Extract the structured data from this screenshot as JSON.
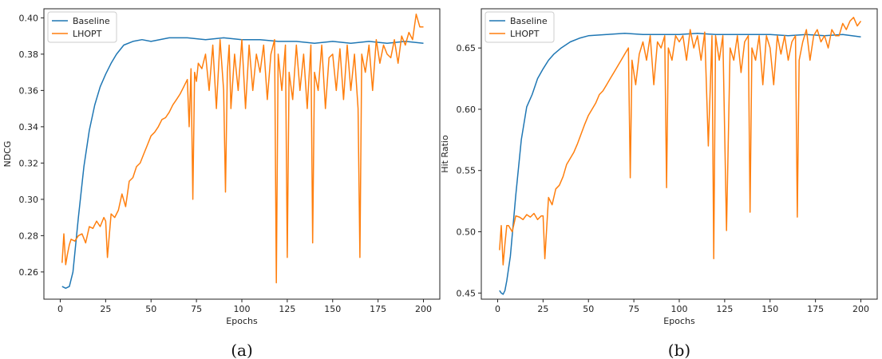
{
  "colors": {
    "baseline": "#1f77b4",
    "lhopt": "#ff7f0e",
    "axis": "#222222",
    "legend_border": "#cccccc"
  },
  "chart_data": [
    {
      "type": "line",
      "caption": "(a)",
      "title": "",
      "xlabel": "Epochs",
      "ylabel": "NDCG",
      "xlim": [
        -9,
        209
      ],
      "ylim": [
        0.245,
        0.405
      ],
      "xticks": [
        0,
        25,
        50,
        75,
        100,
        125,
        150,
        175,
        200
      ],
      "yticks": [
        0.26,
        0.28,
        0.3,
        0.32,
        0.34,
        0.36,
        0.38,
        0.4
      ],
      "ytick_labels": [
        "0.26",
        "0.28",
        "0.30",
        "0.32",
        "0.34",
        "0.36",
        "0.38",
        "0.40"
      ],
      "grid": false,
      "legend": "top-left",
      "series": [
        {
          "name": "Baseline",
          "x": [
            1,
            3,
            5,
            7,
            10,
            13,
            16,
            19,
            22,
            25,
            28,
            31,
            35,
            40,
            45,
            50,
            60,
            70,
            80,
            90,
            100,
            110,
            120,
            130,
            140,
            150,
            160,
            170,
            180,
            190,
            200
          ],
          "values": [
            0.252,
            0.251,
            0.252,
            0.26,
            0.29,
            0.318,
            0.338,
            0.352,
            0.362,
            0.369,
            0.375,
            0.38,
            0.385,
            0.387,
            0.388,
            0.387,
            0.389,
            0.389,
            0.388,
            0.389,
            0.388,
            0.388,
            0.387,
            0.387,
            0.386,
            0.387,
            0.386,
            0.387,
            0.386,
            0.387,
            0.386
          ]
        },
        {
          "name": "LHOPT",
          "x": [
            1,
            2,
            3,
            4,
            5,
            6,
            8,
            10,
            12,
            14,
            16,
            18,
            20,
            22,
            24,
            25,
            26,
            28,
            30,
            32,
            34,
            36,
            38,
            40,
            42,
            44,
            46,
            48,
            50,
            52,
            54,
            56,
            58,
            60,
            62,
            64,
            66,
            68,
            70,
            71,
            72,
            73,
            74,
            75,
            76,
            78,
            80,
            82,
            84,
            86,
            88,
            90,
            91,
            92,
            93,
            94,
            96,
            98,
            100,
            102,
            104,
            106,
            108,
            110,
            112,
            114,
            116,
            118,
            119,
            120,
            122,
            124,
            125,
            126,
            128,
            130,
            132,
            134,
            136,
            138,
            139,
            140,
            142,
            144,
            146,
            148,
            150,
            152,
            154,
            156,
            158,
            160,
            162,
            164,
            165,
            166,
            168,
            170,
            172,
            174,
            176,
            178,
            180,
            182,
            184,
            186,
            188,
            190,
            192,
            194,
            196,
            198,
            200
          ],
          "values": [
            0.265,
            0.281,
            0.264,
            0.27,
            0.275,
            0.278,
            0.277,
            0.28,
            0.281,
            0.276,
            0.285,
            0.284,
            0.288,
            0.285,
            0.29,
            0.288,
            0.268,
            0.292,
            0.29,
            0.294,
            0.303,
            0.296,
            0.31,
            0.312,
            0.318,
            0.32,
            0.325,
            0.33,
            0.335,
            0.337,
            0.34,
            0.344,
            0.345,
            0.348,
            0.352,
            0.355,
            0.358,
            0.362,
            0.366,
            0.34,
            0.372,
            0.3,
            0.37,
            0.365,
            0.375,
            0.372,
            0.38,
            0.36,
            0.385,
            0.35,
            0.388,
            0.36,
            0.304,
            0.37,
            0.385,
            0.35,
            0.38,
            0.36,
            0.388,
            0.35,
            0.385,
            0.36,
            0.38,
            0.37,
            0.385,
            0.355,
            0.38,
            0.388,
            0.254,
            0.38,
            0.36,
            0.385,
            0.268,
            0.37,
            0.355,
            0.385,
            0.36,
            0.38,
            0.35,
            0.385,
            0.276,
            0.37,
            0.36,
            0.385,
            0.35,
            0.378,
            0.38,
            0.36,
            0.383,
            0.355,
            0.385,
            0.36,
            0.38,
            0.35,
            0.268,
            0.38,
            0.37,
            0.385,
            0.36,
            0.388,
            0.375,
            0.385,
            0.38,
            0.378,
            0.388,
            0.375,
            0.39,
            0.385,
            0.392,
            0.388,
            0.402,
            0.395,
            0.395
          ]
        }
      ]
    },
    {
      "type": "line",
      "caption": "(b)",
      "title": "",
      "xlabel": "Epochs",
      "ylabel": "Hit Ratio",
      "xlim": [
        -9,
        209
      ],
      "ylim": [
        0.445,
        0.682
      ],
      "xticks": [
        0,
        25,
        50,
        75,
        100,
        125,
        150,
        175,
        200
      ],
      "yticks": [
        0.45,
        0.5,
        0.55,
        0.6,
        0.65
      ],
      "ytick_labels": [
        "0.45",
        "0.50",
        "0.55",
        "0.60",
        "0.65"
      ],
      "grid": false,
      "legend": "top-left",
      "series": [
        {
          "name": "Baseline",
          "x": [
            1,
            2,
            3,
            4,
            5,
            7,
            10,
            13,
            16,
            19,
            22,
            25,
            28,
            31,
            35,
            40,
            45,
            50,
            60,
            70,
            80,
            90,
            100,
            110,
            120,
            130,
            140,
            150,
            160,
            170,
            180,
            190,
            200
          ],
          "values": [
            0.452,
            0.45,
            0.449,
            0.452,
            0.46,
            0.48,
            0.53,
            0.575,
            0.602,
            0.612,
            0.625,
            0.633,
            0.64,
            0.645,
            0.65,
            0.655,
            0.658,
            0.66,
            0.661,
            0.662,
            0.661,
            0.661,
            0.661,
            0.662,
            0.661,
            0.661,
            0.661,
            0.661,
            0.66,
            0.661,
            0.66,
            0.661,
            0.659
          ]
        },
        {
          "name": "LHOPT",
          "x": [
            1,
            2,
            3,
            4,
            5,
            6,
            8,
            10,
            12,
            14,
            16,
            18,
            20,
            22,
            24,
            25,
            26,
            28,
            30,
            32,
            34,
            36,
            38,
            40,
            42,
            44,
            46,
            48,
            50,
            52,
            54,
            56,
            58,
            60,
            62,
            64,
            66,
            68,
            70,
            72,
            73,
            74,
            76,
            78,
            80,
            82,
            84,
            86,
            88,
            90,
            92,
            93,
            94,
            96,
            98,
            100,
            102,
            104,
            106,
            108,
            110,
            112,
            114,
            116,
            118,
            119,
            120,
            122,
            124,
            126,
            128,
            130,
            132,
            134,
            136,
            138,
            139,
            140,
            142,
            144,
            146,
            148,
            150,
            152,
            154,
            156,
            158,
            160,
            162,
            164,
            165,
            166,
            168,
            170,
            172,
            174,
            176,
            178,
            180,
            182,
            184,
            186,
            188,
            190,
            192,
            194,
            196,
            198,
            200
          ],
          "values": [
            0.485,
            0.505,
            0.473,
            0.49,
            0.505,
            0.505,
            0.5,
            0.513,
            0.512,
            0.51,
            0.514,
            0.512,
            0.515,
            0.51,
            0.513,
            0.513,
            0.478,
            0.528,
            0.522,
            0.535,
            0.538,
            0.545,
            0.555,
            0.56,
            0.565,
            0.572,
            0.58,
            0.588,
            0.595,
            0.6,
            0.605,
            0.612,
            0.615,
            0.62,
            0.625,
            0.63,
            0.635,
            0.64,
            0.645,
            0.65,
            0.544,
            0.64,
            0.62,
            0.645,
            0.655,
            0.64,
            0.66,
            0.62,
            0.655,
            0.65,
            0.66,
            0.536,
            0.65,
            0.64,
            0.66,
            0.655,
            0.66,
            0.64,
            0.665,
            0.65,
            0.66,
            0.64,
            0.663,
            0.57,
            0.66,
            0.478,
            0.66,
            0.64,
            0.66,
            0.501,
            0.65,
            0.64,
            0.66,
            0.63,
            0.655,
            0.66,
            0.516,
            0.65,
            0.64,
            0.66,
            0.62,
            0.66,
            0.65,
            0.62,
            0.66,
            0.645,
            0.66,
            0.64,
            0.655,
            0.66,
            0.512,
            0.64,
            0.655,
            0.665,
            0.64,
            0.66,
            0.665,
            0.655,
            0.66,
            0.65,
            0.665,
            0.66,
            0.66,
            0.67,
            0.665,
            0.672,
            0.675,
            0.668,
            0.672
          ]
        }
      ]
    }
  ]
}
